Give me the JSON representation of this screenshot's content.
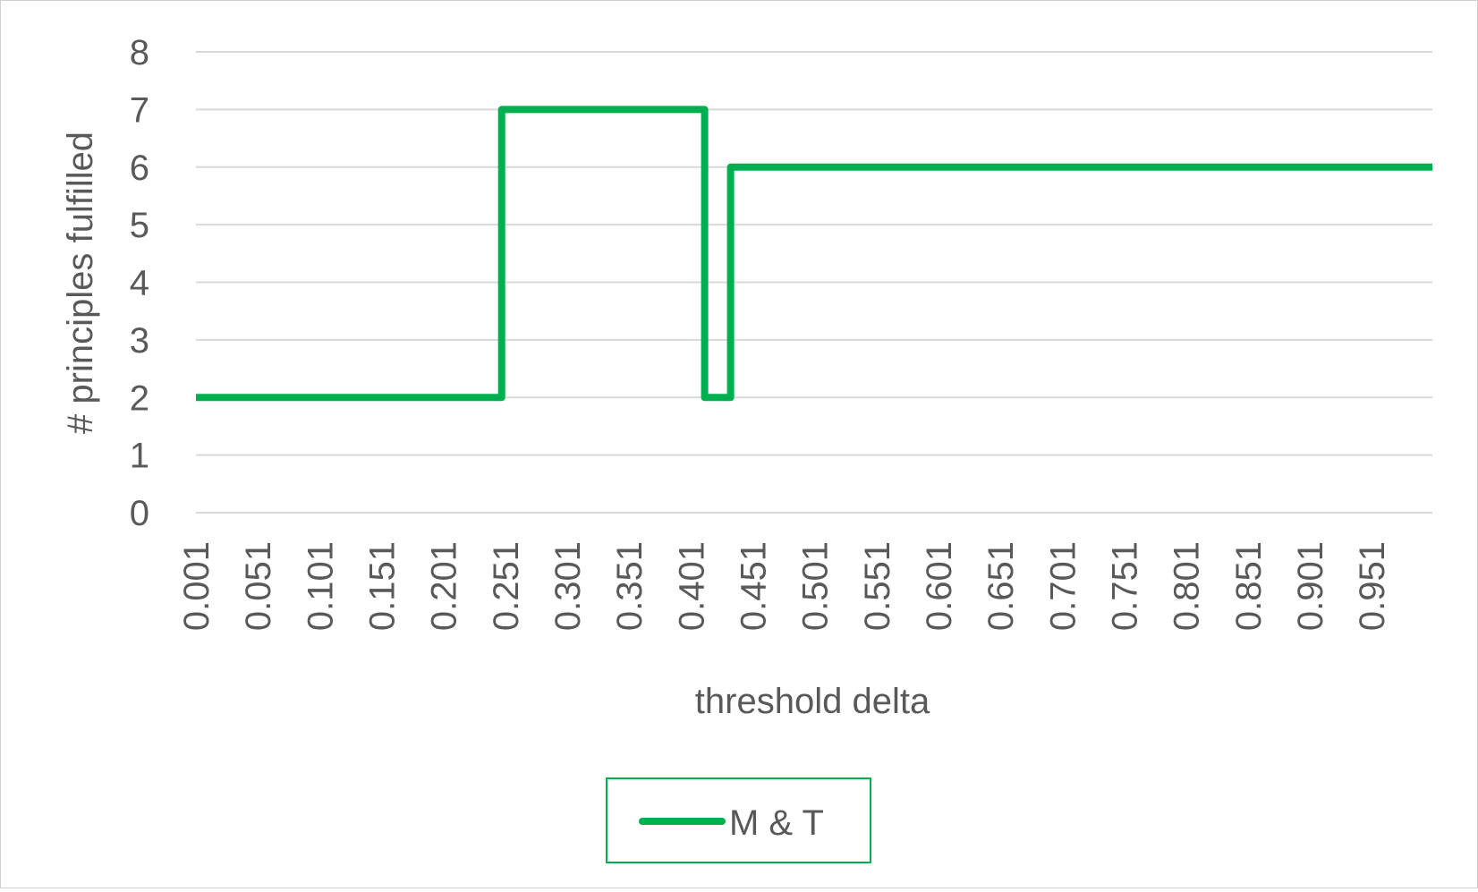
{
  "chart_data": {
    "type": "line",
    "title": "",
    "xlabel": "threshold delta",
    "ylabel": "# principles fulfilled",
    "ylim": [
      0,
      8
    ],
    "yticks": [
      0,
      1,
      2,
      3,
      4,
      5,
      6,
      7,
      8
    ],
    "xlim": [
      0.001,
      1.0
    ],
    "xtick_labels": [
      "0.001",
      "0.051",
      "0.101",
      "0.151",
      "0.201",
      "0.251",
      "0.301",
      "0.351",
      "0.401",
      "0.451",
      "0.501",
      "0.551",
      "0.601",
      "0.651",
      "0.701",
      "0.751",
      "0.801",
      "0.851",
      "0.901",
      "0.951"
    ],
    "grid": true,
    "legend": "bottom",
    "colors": {
      "series": "#00b050",
      "grid": "#d9d9d9",
      "text": "#595959"
    },
    "series": [
      {
        "name": "M & T",
        "step_points": [
          {
            "x": 0.001,
            "y": 2
          },
          {
            "x": 0.248,
            "y": 2
          },
          {
            "x": 0.248,
            "y": 7
          },
          {
            "x": 0.412,
            "y": 7
          },
          {
            "x": 0.412,
            "y": 2
          },
          {
            "x": 0.433,
            "y": 2
          },
          {
            "x": 0.433,
            "y": 6
          },
          {
            "x": 1.0,
            "y": 6
          }
        ]
      }
    ]
  }
}
